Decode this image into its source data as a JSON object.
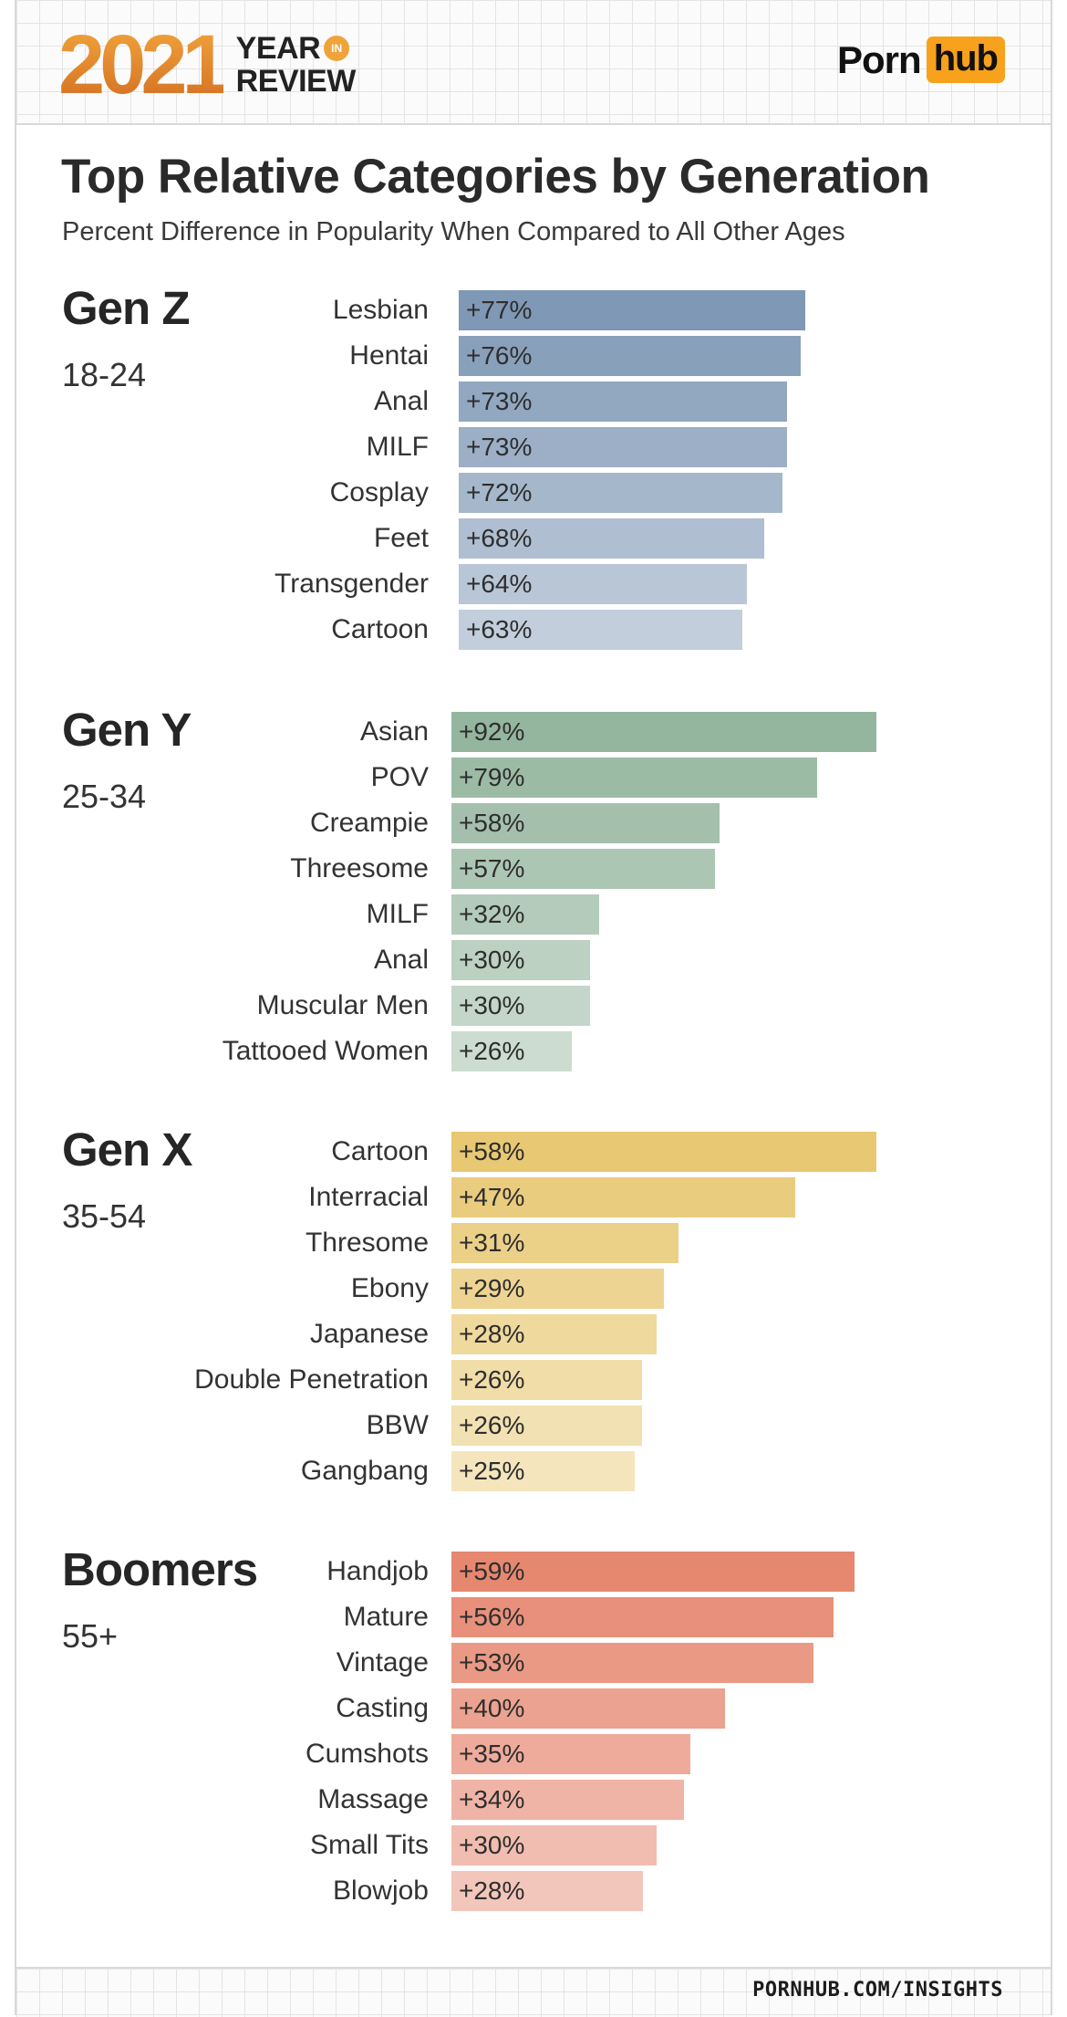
{
  "header": {
    "year": "2021",
    "year_word": "YEAR",
    "in_badge": "IN",
    "review_word": "REVIEW",
    "brand_porn": "Porn",
    "brand_hub": "hub"
  },
  "chart_data": {
    "type": "bar",
    "orientation": "horizontal",
    "title": "Top Relative Categories by Generation",
    "subtitle": "Percent Difference in Popularity When Compared to All Other Ages",
    "groups": [
      {
        "name": "Gen Z",
        "age": "18-24",
        "color": "#7f98b5",
        "categories": [
          "Lesbian",
          "Hentai",
          "Anal",
          "MILF",
          "Cosplay",
          "Feet",
          "Transgender",
          "Cartoon"
        ],
        "values": [
          77,
          76,
          73,
          73,
          72,
          68,
          64,
          63
        ],
        "labels": [
          "+77%",
          "+76%",
          "+73%",
          "+73%",
          "+72%",
          "+68%",
          "+64%",
          "+63%"
        ]
      },
      {
        "name": "Gen Y",
        "age": "25-34",
        "color": "#94b59e",
        "categories": [
          "Asian",
          "POV",
          "Creampie",
          "Threesome",
          "MILF",
          "Anal",
          "Muscular Men",
          "Tattooed Women"
        ],
        "values": [
          92,
          79,
          58,
          57,
          32,
          30,
          30,
          26
        ],
        "labels": [
          "+92%",
          "+79%",
          "+58%",
          "+57%",
          "+32%",
          "+30%",
          "+30%",
          "+26%"
        ]
      },
      {
        "name": "Gen X",
        "age": "35-54",
        "color": "#e8c873",
        "categories": [
          "Cartoon",
          "Interracial",
          "Thresome",
          "Ebony",
          "Japanese",
          "Double Penetration",
          "BBW",
          "Gangbang"
        ],
        "values": [
          58,
          47,
          31,
          29,
          28,
          26,
          26,
          25
        ],
        "labels": [
          "+58%",
          "+47%",
          "+31%",
          "+29%",
          "+28%",
          "+26%",
          "+26%",
          "+25%"
        ]
      },
      {
        "name": "Boomers",
        "age": "55+",
        "color": "#e68770",
        "categories": [
          "Handjob",
          "Mature",
          "Vintage",
          "Casting",
          "Cumshots",
          "Massage",
          "Small Tits",
          "Blowjob"
        ],
        "values": [
          59,
          56,
          53,
          40,
          35,
          34,
          30,
          28
        ],
        "labels": [
          "+59%",
          "+56%",
          "+53%",
          "+40%",
          "+35%",
          "+34%",
          "+30%",
          "+28%"
        ]
      }
    ]
  },
  "footer": {
    "source": "PORNHUB.COM/INSIGHTS"
  }
}
